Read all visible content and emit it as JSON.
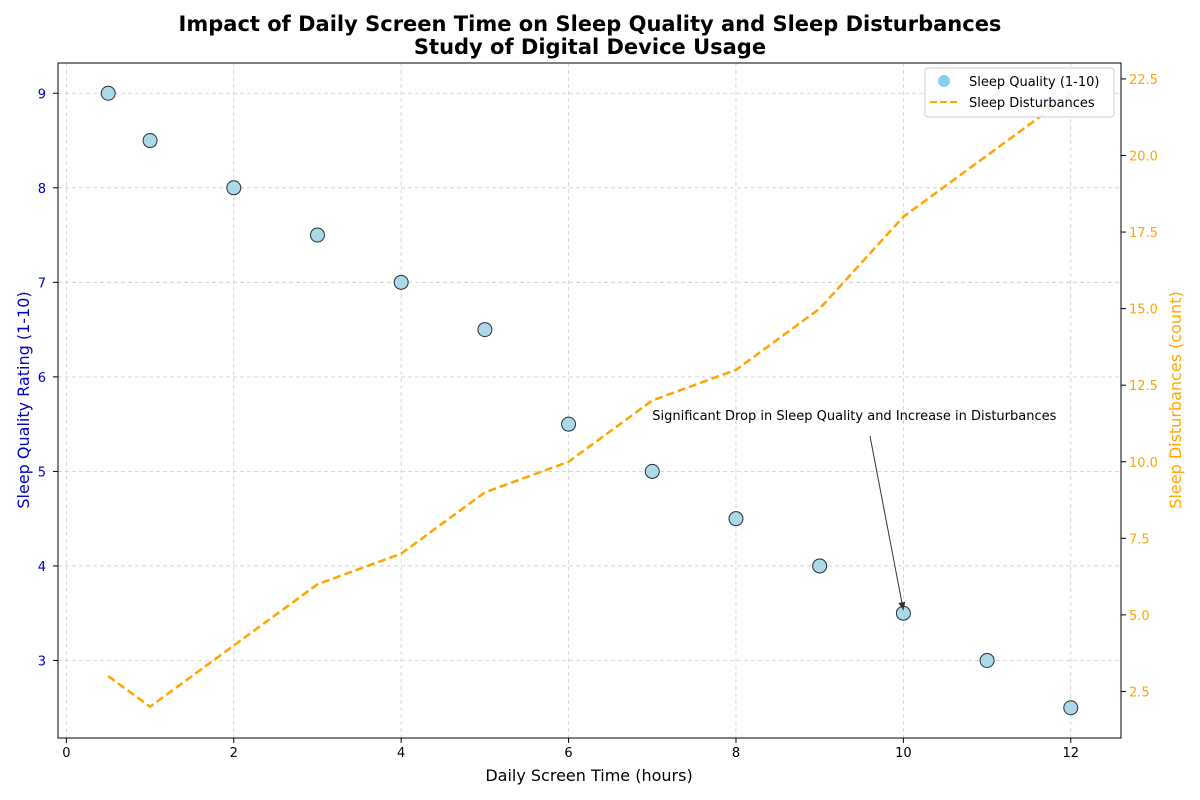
{
  "chart_data": {
    "type": "scatter",
    "title": "Impact of Daily Screen Time on Sleep Quality and Sleep Disturbances",
    "subtitle": "Study of Digital Device Usage",
    "xlabel": "Daily Screen Time (hours)",
    "ylabel_left": "Sleep Quality Rating (1-10)",
    "ylabel_right": "Sleep Disturbances (count)",
    "xlim": [
      -0.1,
      12.6
    ],
    "ylim_left": [
      2.18,
      9.32
    ],
    "ylim_right": [
      0.98,
      23.02
    ],
    "x_ticks": [
      0,
      2,
      4,
      6,
      8,
      10,
      12
    ],
    "y_left_ticks": [
      3,
      4,
      5,
      6,
      7,
      8,
      9
    ],
    "y_right_ticks": [
      "2.5",
      "5.0",
      "7.5",
      "10.0",
      "12.5",
      "15.0",
      "17.5",
      "20.0",
      "22.5"
    ],
    "grid": true,
    "legend_position": "top-right",
    "x": [
      0.5,
      1,
      2,
      3,
      4,
      5,
      6,
      7,
      8,
      9,
      10,
      11,
      12
    ],
    "series": [
      {
        "name": "Sleep Quality (1-10)",
        "kind": "scatter",
        "axis": "left",
        "values": [
          9.0,
          8.5,
          8.0,
          7.5,
          7.0,
          6.5,
          5.5,
          5.0,
          4.5,
          4.0,
          3.5,
          3.0,
          2.5
        ],
        "color": "#add8e6",
        "legend_color": "#87ceeb",
        "edge_color": "#1f2f3f"
      },
      {
        "name": "Sleep Disturbances",
        "kind": "dashed-line",
        "axis": "right",
        "values": [
          3,
          2,
          4,
          6,
          7,
          9,
          10,
          12,
          13,
          15,
          18,
          20,
          22
        ],
        "color": "#ffa500"
      }
    ],
    "annotation": {
      "text": "Significant Drop in Sleep Quality and Increase in Disturbances",
      "target_x": 10,
      "target_y": 3.5,
      "text_x": 7,
      "text_y": 5.5
    },
    "colors": {
      "left_axis": "#0000cc",
      "right_axis": "#ffa500",
      "grid": "#cccccc"
    }
  }
}
